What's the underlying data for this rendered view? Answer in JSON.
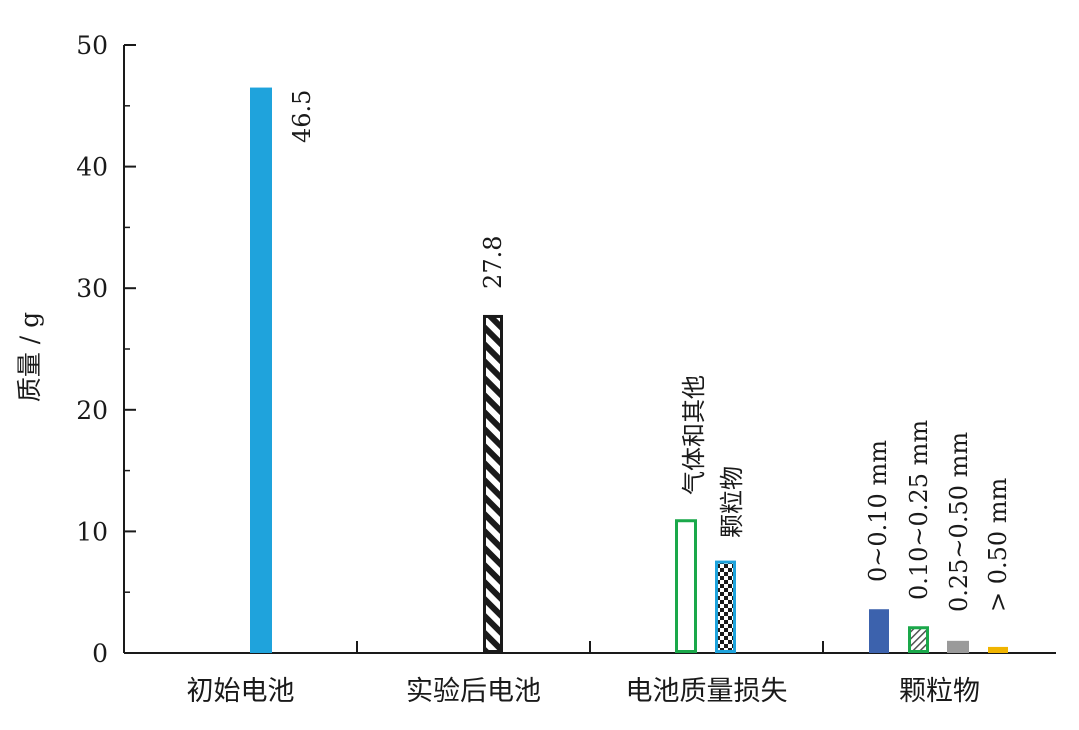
{
  "chart_data": {
    "type": "bar",
    "ylabel": "质量 / g",
    "xlabel": "",
    "title": "",
    "ylim": [
      0,
      50
    ],
    "yticks": [
      0,
      10,
      20,
      30,
      40,
      50
    ],
    "grid": false,
    "categories": [
      "初始电池",
      "实验后电池",
      "电池质量损失",
      "颗粒物"
    ],
    "bars": [
      {
        "category": "初始电池",
        "label": "",
        "value": 46.5,
        "value_label": "46.5",
        "fill": "#1fa3dc",
        "stroke": "#1fa3dc",
        "pattern": "solid"
      },
      {
        "category": "实验后电池",
        "label": "",
        "value": 27.8,
        "value_label": "27.8",
        "fill": "#ffffff",
        "stroke": "#1a1a1a",
        "pattern": "diagonal-stripe"
      },
      {
        "category": "电池质量损失",
        "label": "气体和其他",
        "value": 11.0,
        "value_label": "",
        "fill": "#ffffff",
        "stroke": "#1aa84a",
        "pattern": "none"
      },
      {
        "category": "电池质量损失",
        "label": "颗粒物",
        "value": 7.6,
        "value_label": "",
        "fill": "#ffffff",
        "stroke": "#1fa3dc",
        "pattern": "checker"
      },
      {
        "category": "颗粒物",
        "label": "0~0.10 mm",
        "value": 3.6,
        "value_label": "",
        "fill": "#3c62ad",
        "stroke": "#3c62ad",
        "pattern": "solid"
      },
      {
        "category": "颗粒物",
        "label": "0.10~0.25 mm",
        "value": 2.2,
        "value_label": "",
        "fill": "#ffffff",
        "stroke": "#1aa84a",
        "pattern": "light-hatch"
      },
      {
        "category": "颗粒物",
        "label": "0.25~0.50 mm",
        "value": 1.0,
        "value_label": "",
        "fill": "#9a9a9a",
        "stroke": "#1fa3dc",
        "pattern": "solid"
      },
      {
        "category": "颗粒物",
        "label": "> 0.50 mm",
        "value": 0.5,
        "value_label": "",
        "fill": "#f0b400",
        "stroke": "#f0b400",
        "pattern": "solid"
      }
    ]
  }
}
